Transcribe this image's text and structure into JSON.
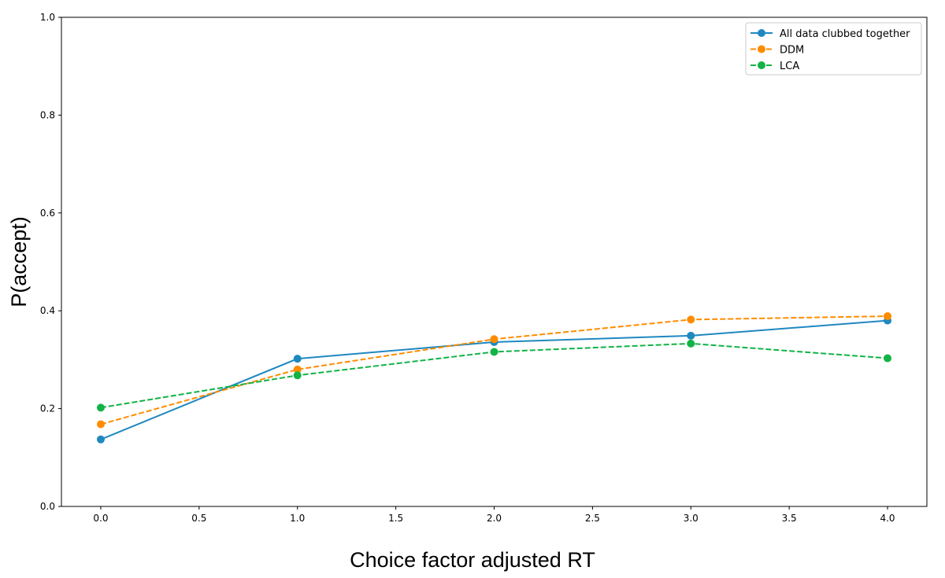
{
  "chart_data": {
    "type": "line",
    "xlabel": "Choice factor adjusted RT",
    "ylabel": "P(accept)",
    "xlim": [
      -0.2,
      4.2
    ],
    "ylim": [
      0.0,
      1.0
    ],
    "xticks": [
      "0.0",
      "0.5",
      "1.0",
      "1.5",
      "2.0",
      "2.5",
      "3.0",
      "3.5",
      "4.0"
    ],
    "yticks": [
      "0.0",
      "0.2",
      "0.4",
      "0.6",
      "0.8",
      "1.0"
    ],
    "grid": false,
    "legend_position": "top-right",
    "x": [
      0,
      1,
      2,
      3,
      4
    ],
    "series": [
      {
        "name": "All data clubbed together",
        "color": "#1f88c0",
        "style": "solid",
        "values": [
          0.137,
          0.302,
          0.336,
          0.349,
          0.38
        ]
      },
      {
        "name": "DDM",
        "color": "#ff8c00",
        "style": "dashed",
        "values": [
          0.168,
          0.28,
          0.342,
          0.382,
          0.389
        ]
      },
      {
        "name": "LCA",
        "color": "#12b346",
        "style": "dashed",
        "values": [
          0.202,
          0.268,
          0.316,
          0.333,
          0.303
        ]
      }
    ]
  }
}
